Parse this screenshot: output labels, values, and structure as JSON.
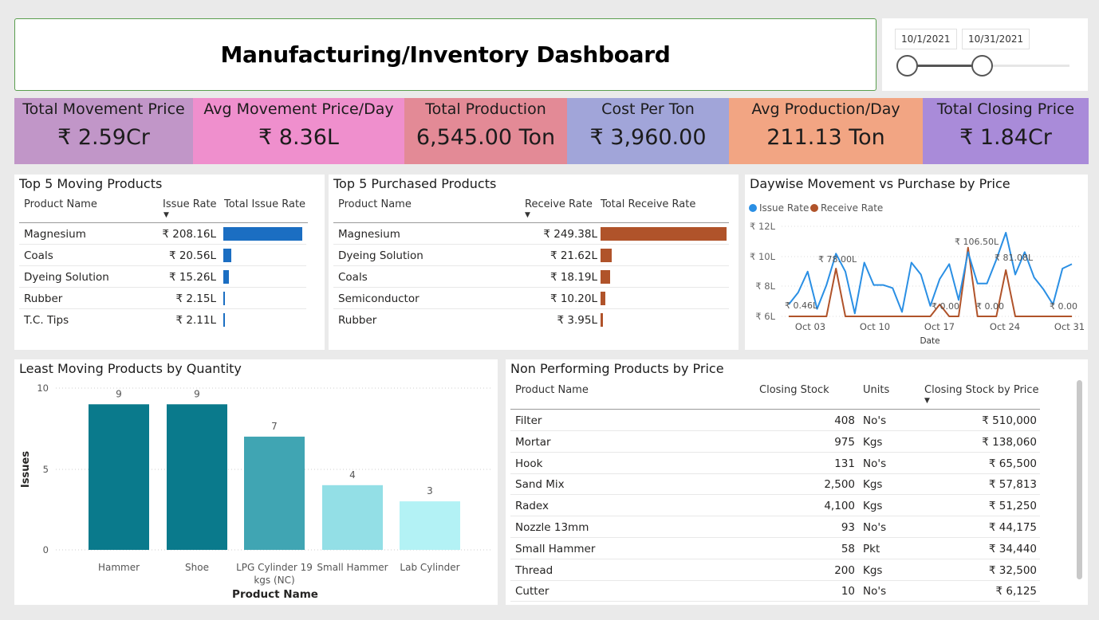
{
  "header": {
    "title": "Manufacturing/Inventory Dashboard"
  },
  "date_slicer": {
    "start": "10/1/2021",
    "end": "10/31/2021"
  },
  "kpis": [
    {
      "label": "Total Movement Price",
      "value": "₹ 2.59Cr",
      "color": "#c196c8"
    },
    {
      "label": "Avg Movement Price/Day",
      "value": "₹ 8.36L",
      "color": "#ef8fcd"
    },
    {
      "label": "Total Production",
      "value": "6,545.00 Ton",
      "color": "#e38a96"
    },
    {
      "label": "Cost Per Ton",
      "value": "₹ 3,960.00",
      "color": "#a1a5d9"
    },
    {
      "label": "Avg Production/Day",
      "value": "211.13 Ton",
      "color": "#f2a583"
    },
    {
      "label": "Total Closing Price",
      "value": "₹ 1.84Cr",
      "color": "#a98bd9"
    }
  ],
  "top_moving": {
    "title": "Top 5 Moving Products",
    "headers": {
      "name": "Product Name",
      "rate": "Issue Rate",
      "total": "Total Issue Rate"
    },
    "sort_arrow": "▼",
    "color": "#1b6ec2",
    "rows": [
      {
        "name": "Magnesium",
        "rate": "₹ 208.16L",
        "value": 208.16
      },
      {
        "name": "Coals",
        "rate": "₹ 20.56L",
        "value": 20.56
      },
      {
        "name": "Dyeing Solution",
        "rate": "₹ 15.26L",
        "value": 15.26
      },
      {
        "name": "Rubber",
        "rate": "₹ 2.15L",
        "value": 2.15
      },
      {
        "name": "T.C. Tips",
        "rate": "₹ 2.11L",
        "value": 2.11
      }
    ]
  },
  "top_purchased": {
    "title": "Top 5 Purchased Products",
    "headers": {
      "name": "Product Name",
      "rate": "Receive Rate",
      "total": "Total Receive Rate"
    },
    "sort_arrow": "▼",
    "color": "#b0532a",
    "rows": [
      {
        "name": "Magnesium",
        "rate": "₹ 249.38L",
        "value": 249.38
      },
      {
        "name": "Dyeing Solution",
        "rate": "₹ 21.62L",
        "value": 21.62
      },
      {
        "name": "Coals",
        "rate": "₹ 18.19L",
        "value": 18.19
      },
      {
        "name": "Semiconductor",
        "rate": "₹ 10.20L",
        "value": 10.2
      },
      {
        "name": "Rubber",
        "rate": "₹ 3.95L",
        "value": 3.95
      }
    ]
  },
  "daywise": {
    "title": "Daywise Movement vs Purchase by Price",
    "legend": [
      {
        "name": "Issue Rate",
        "color": "#2a8fe4"
      },
      {
        "name": "Receive Rate",
        "color": "#b0532a"
      }
    ],
    "xlabel": "Date",
    "xticks": [
      "Oct 03",
      "Oct 10",
      "Oct 17",
      "Oct 24",
      "Oct 31"
    ],
    "yticks": [
      "₹ 12L",
      "₹ 10L",
      "₹ 8L",
      "₹ 6L"
    ],
    "annotations": [
      "₹ 0.46L",
      "₹ 78.00L",
      "₹ 106.50L",
      "₹ 81.08L",
      "₹ 0.00",
      "₹ 0.00",
      "₹ 0.00"
    ]
  },
  "chart_data": [
    {
      "type": "line",
      "title": "Daywise Movement vs Purchase by Price",
      "xlabel": "Date",
      "ylabel": "",
      "x": [
        1,
        2,
        3,
        4,
        5,
        6,
        7,
        8,
        9,
        10,
        11,
        12,
        13,
        14,
        15,
        16,
        17,
        18,
        19,
        20,
        21,
        22,
        23,
        24,
        25,
        26,
        27,
        28,
        29,
        30,
        31
      ],
      "ylim": [
        6,
        12.5
      ],
      "series": [
        {
          "name": "Issue Rate",
          "values": [
            6.8,
            7.6,
            9.0,
            6.5,
            8.1,
            10.2,
            9.0,
            6.2,
            9.6,
            8.1,
            8.1,
            7.9,
            6.3,
            9.6,
            8.8,
            6.7,
            8.5,
            9.5,
            7.1,
            10.3,
            8.2,
            8.2,
            9.8,
            11.6,
            8.8,
            10.3,
            8.6,
            7.8,
            6.8,
            9.2,
            9.5
          ]
        },
        {
          "name": "Receive Rate",
          "values": [
            6.0,
            6.0,
            6.0,
            6.0,
            6.0,
            9.2,
            6.0,
            6.0,
            6.0,
            6.0,
            6.0,
            6.0,
            6.0,
            6.0,
            6.0,
            6.0,
            6.8,
            6.0,
            6.0,
            10.6,
            6.0,
            6.0,
            6.0,
            9.1,
            6.0,
            6.0,
            6.0,
            6.0,
            6.0,
            6.0,
            6.0
          ]
        }
      ]
    },
    {
      "type": "bar",
      "title": "Least Moving Products by Quantity",
      "xlabel": "Product Name",
      "ylabel": "Issues",
      "categories": [
        "Hammer",
        "Shoe",
        "LPG Cylinder 19 kgs (NC)",
        "Small Hammer",
        "Lab Cylinder"
      ],
      "values": [
        9,
        9,
        7,
        4,
        3
      ],
      "colors": [
        "#0a7a8c",
        "#0a7a8c",
        "#40a5b3",
        "#93dfe6",
        "#b3f2f5"
      ],
      "ylim": [
        0,
        10
      ],
      "yticks": [
        "10",
        "5",
        "0"
      ],
      "category_lines": [
        [
          "Hammer"
        ],
        [
          "Shoe"
        ],
        [
          "LPG Cylinder 19",
          "kgs (NC)"
        ],
        [
          "Small Hammer"
        ],
        [
          "Lab Cylinder"
        ]
      ]
    }
  ],
  "non_performing": {
    "title": "Non Performing Products by Price",
    "headers": {
      "name": "Product Name",
      "stock": "Closing Stock",
      "units": "Units",
      "price": "Closing Stock by Price"
    },
    "sort_arrow": "▼",
    "rows": [
      {
        "name": "Filter",
        "stock": "408",
        "units": "No's",
        "price": "₹ 510,000"
      },
      {
        "name": "Mortar",
        "stock": "975",
        "units": "Kgs",
        "price": "₹ 138,060"
      },
      {
        "name": "Hook",
        "stock": "131",
        "units": "No's",
        "price": "₹ 65,500"
      },
      {
        "name": "Sand Mix",
        "stock": "2,500",
        "units": "Kgs",
        "price": "₹ 57,813"
      },
      {
        "name": "Radex",
        "stock": "4,100",
        "units": "Kgs",
        "price": "₹ 51,250"
      },
      {
        "name": "Nozzle 13mm",
        "stock": "93",
        "units": "No's",
        "price": "₹ 44,175"
      },
      {
        "name": "Small Hammer",
        "stock": "58",
        "units": "Pkt",
        "price": "₹ 34,440"
      },
      {
        "name": "Thread",
        "stock": "200",
        "units": "Kgs",
        "price": "₹ 32,500"
      },
      {
        "name": "Cutter",
        "stock": "10",
        "units": "No's",
        "price": "₹ 6,125"
      }
    ]
  }
}
